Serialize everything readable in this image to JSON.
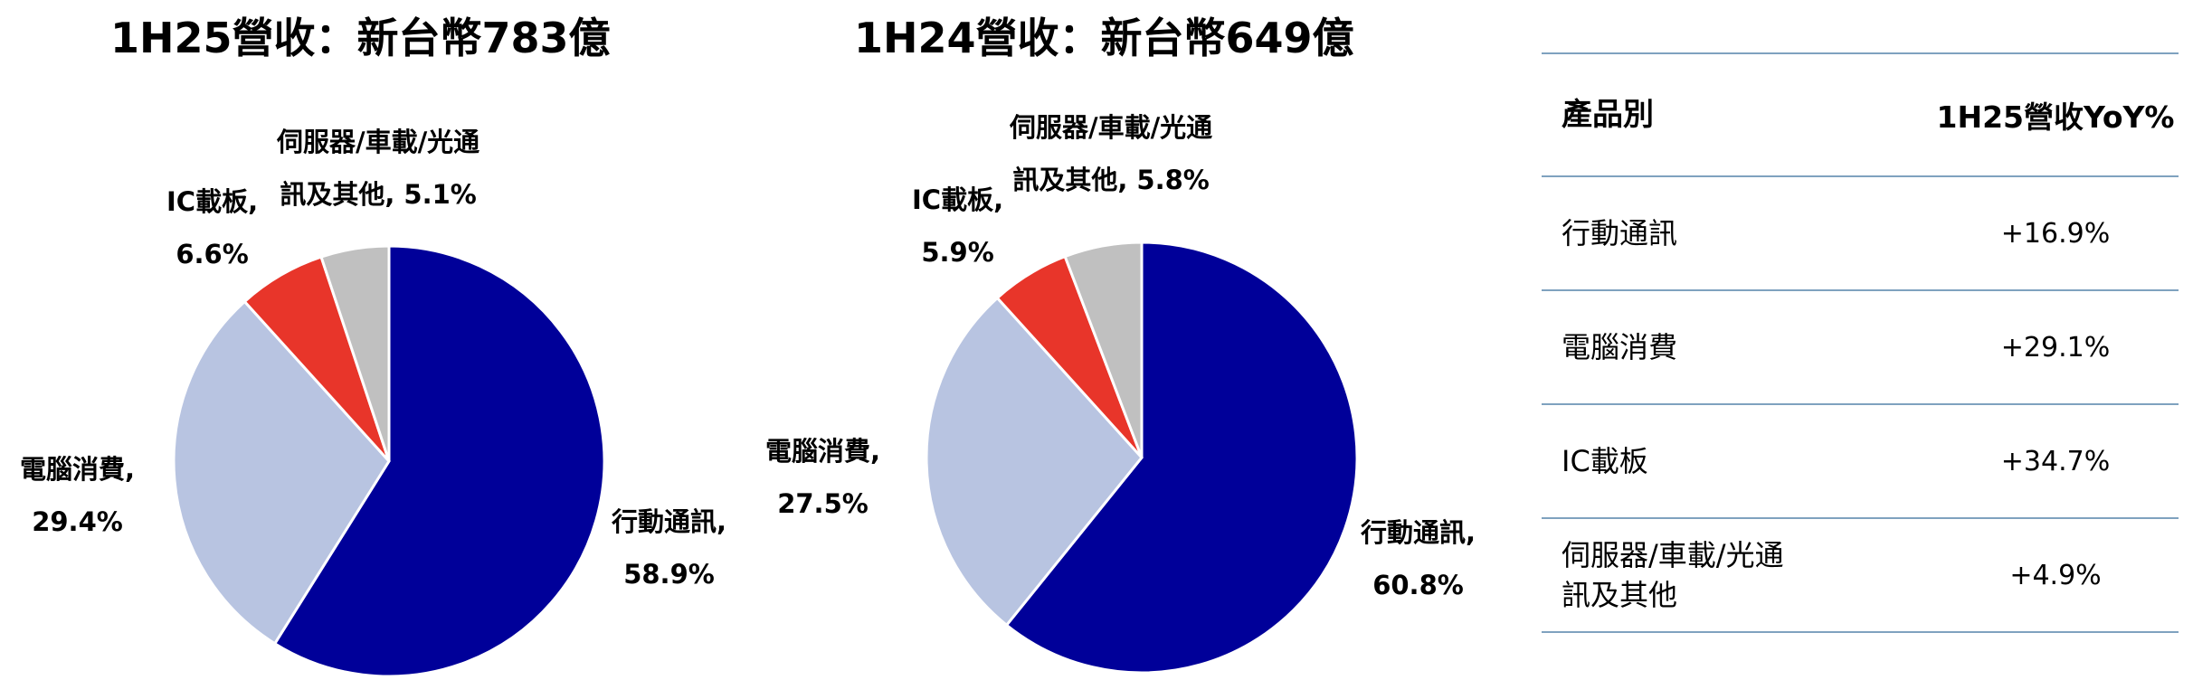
{
  "chart_data": [
    {
      "type": "pie",
      "title": "1H25營收：新台幣783億",
      "slices": [
        {
          "label": "行動通訊,",
          "value": 58.9,
          "value_text": "58.9%",
          "color": "#000099"
        },
        {
          "label": "電腦消費,",
          "value": 29.4,
          "value_text": "29.4%",
          "color": "#b8c4e1"
        },
        {
          "label": "IC載板,",
          "value": 6.6,
          "value_text": "6.6%",
          "color": "#e8352a"
        },
        {
          "label": "伺服器/車載/光通訊及其他,",
          "value": 5.1,
          "value_text": "5.1%",
          "color": "#c0c0c0"
        }
      ]
    },
    {
      "type": "pie",
      "title": "1H24營收：新台幣649億",
      "slices": [
        {
          "label": "行動通訊,",
          "value": 60.8,
          "value_text": "60.8%",
          "color": "#000099"
        },
        {
          "label": "電腦消費,",
          "value": 27.5,
          "value_text": "27.5%",
          "color": "#b8c4e1"
        },
        {
          "label": "IC載板,",
          "value": 5.9,
          "value_text": "5.9%",
          "color": "#e8352a"
        },
        {
          "label": "伺服器/車載/光通訊及其他,",
          "value": 5.8,
          "value_text": "5.8%",
          "color": "#c0c0c0"
        }
      ]
    }
  ],
  "pie1": {
    "title": "1H25營收：新台幣783億",
    "mobile_label": "行動通訊,",
    "mobile_value": "58.9%",
    "pc_label": "電腦消費,",
    "pc_value": "29.4%",
    "ic_label": "IC載板,",
    "ic_value": "6.6%",
    "server_label_1": "伺服器/車載/光通",
    "server_label_2": "訊及其他, 5.1%"
  },
  "pie2": {
    "title": "1H24營收：新台幣649億",
    "mobile_label": "行動通訊,",
    "mobile_value": "60.8%",
    "pc_label": "電腦消費,",
    "pc_value": "27.5%",
    "ic_label": "IC載板,",
    "ic_value": "5.9%",
    "server_label_1": "伺服器/車載/光通",
    "server_label_2": "訊及其他, 5.8%"
  },
  "table": {
    "header": {
      "col1": "產品別",
      "col2": "1H25營收YoY%"
    },
    "rows": [
      {
        "name": "行動通訊",
        "yoy": "+16.9%"
      },
      {
        "name": "電腦消費",
        "yoy": "+29.1%"
      },
      {
        "name": "IC載板",
        "yoy": "+34.7%"
      },
      {
        "name_line1": "伺服器/車載/光通",
        "name_line2": "訊及其他",
        "yoy": "+4.9%"
      }
    ]
  }
}
